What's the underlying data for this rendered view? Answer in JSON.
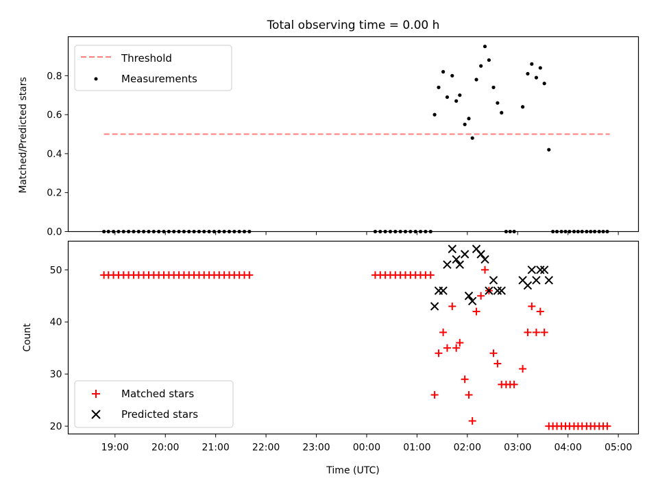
{
  "chart_data": [
    {
      "type": "scatter",
      "title": "Total observing time = 0.00 h",
      "ylabel": "Matched/Predicted stars",
      "ylim": [
        0,
        1.0
      ],
      "yticks": [
        "0.0",
        "0.2",
        "0.4",
        "0.6",
        "0.8"
      ],
      "legend": {
        "placement": "top-left",
        "threshold_label": "Threshold",
        "measurements_label": "Measurements"
      },
      "threshold": {
        "y": 0.5,
        "x_start": 18.78,
        "x_end": 28.83,
        "color": "#ff7f7f"
      },
      "series": [
        {
          "name": "Measurements",
          "color": "#000000",
          "x": [
            18.78,
            18.87,
            18.97,
            19.07,
            19.17,
            19.27,
            19.37,
            19.47,
            19.57,
            19.67,
            19.77,
            19.87,
            19.97,
            20.07,
            20.17,
            20.27,
            20.37,
            20.47,
            20.57,
            20.67,
            20.77,
            20.87,
            20.97,
            21.07,
            21.17,
            21.27,
            21.37,
            21.47,
            21.57,
            21.67,
            24.17,
            24.27,
            24.37,
            24.47,
            24.57,
            24.67,
            24.77,
            24.87,
            24.97,
            25.07,
            25.17,
            25.27,
            25.35,
            25.43,
            25.52,
            25.6,
            25.7,
            25.78,
            25.85,
            25.95,
            26.03,
            26.1,
            26.18,
            26.27,
            26.35,
            26.43,
            26.52,
            26.6,
            26.68,
            26.77,
            26.85,
            26.93,
            27.1,
            27.2,
            27.28,
            27.37,
            27.45,
            27.53,
            27.62,
            27.7,
            27.78,
            27.87,
            27.95,
            28.03,
            28.12,
            28.2,
            28.28,
            28.37,
            28.45,
            28.53,
            28.62,
            28.7,
            28.78
          ],
          "y": [
            0,
            0,
            0,
            0,
            0,
            0,
            0,
            0,
            0,
            0,
            0,
            0,
            0,
            0,
            0,
            0,
            0,
            0,
            0,
            0,
            0,
            0,
            0,
            0,
            0,
            0,
            0,
            0,
            0,
            0,
            0,
            0,
            0,
            0,
            0,
            0,
            0,
            0,
            0,
            0,
            0,
            0,
            0.6,
            0.74,
            0.82,
            0.69,
            0.8,
            0.67,
            0.7,
            0.55,
            0.58,
            0.48,
            0.78,
            0.85,
            0.95,
            0.88,
            0.74,
            0.66,
            0.61,
            0,
            0,
            0,
            0.64,
            0.81,
            0.86,
            0.79,
            0.84,
            0.76,
            0.42,
            0,
            0,
            0,
            0,
            0,
            0,
            0,
            0,
            0,
            0,
            0,
            0,
            0,
            0
          ]
        }
      ]
    },
    {
      "type": "scatter",
      "title": "",
      "xlabel": "Time (UTC)",
      "ylabel": "Count",
      "ylim": [
        18.5,
        55.5
      ],
      "xlim": [
        18.07,
        29.4
      ],
      "yticks": [
        "20",
        "30",
        "40",
        "50"
      ],
      "xticks": [
        {
          "v": 19,
          "label": "19:00"
        },
        {
          "v": 20,
          "label": "20:00"
        },
        {
          "v": 21,
          "label": "21:00"
        },
        {
          "v": 22,
          "label": "22:00"
        },
        {
          "v": 23,
          "label": "23:00"
        },
        {
          "v": 24,
          "label": "00:00"
        },
        {
          "v": 25,
          "label": "01:00"
        },
        {
          "v": 26,
          "label": "02:00"
        },
        {
          "v": 27,
          "label": "03:00"
        },
        {
          "v": 28,
          "label": "04:00"
        },
        {
          "v": 29,
          "label": "05:00"
        }
      ],
      "legend": {
        "placement": "bottom-left",
        "matched_label": "Matched stars",
        "predicted_label": "Predicted stars"
      },
      "series": [
        {
          "name": "Matched stars",
          "color": "#ff0000",
          "x": [
            18.78,
            18.87,
            18.97,
            19.07,
            19.17,
            19.27,
            19.37,
            19.47,
            19.57,
            19.67,
            19.77,
            19.87,
            19.97,
            20.07,
            20.17,
            20.27,
            20.37,
            20.47,
            20.57,
            20.67,
            20.77,
            20.87,
            20.97,
            21.07,
            21.17,
            21.27,
            21.37,
            21.47,
            21.57,
            21.67,
            24.17,
            24.27,
            24.37,
            24.47,
            24.57,
            24.67,
            24.77,
            24.87,
            24.97,
            25.07,
            25.17,
            25.27,
            25.35,
            25.43,
            25.52,
            25.6,
            25.7,
            25.78,
            25.85,
            25.95,
            26.03,
            26.1,
            26.18,
            26.27,
            26.35,
            26.43,
            26.52,
            26.6,
            26.68,
            26.77,
            26.85,
            26.93,
            27.1,
            27.2,
            27.28,
            27.37,
            27.45,
            27.53,
            27.62,
            27.7,
            27.78,
            27.87,
            27.95,
            28.03,
            28.12,
            28.2,
            28.28,
            28.37,
            28.45,
            28.53,
            28.62,
            28.7,
            28.78
          ],
          "y": [
            49,
            49,
            49,
            49,
            49,
            49,
            49,
            49,
            49,
            49,
            49,
            49,
            49,
            49,
            49,
            49,
            49,
            49,
            49,
            49,
            49,
            49,
            49,
            49,
            49,
            49,
            49,
            49,
            49,
            49,
            49,
            49,
            49,
            49,
            49,
            49,
            49,
            49,
            49,
            49,
            49,
            49,
            26,
            34,
            38,
            35,
            43,
            35,
            36,
            29,
            26,
            21,
            42,
            45,
            50,
            46,
            34,
            32,
            28,
            28,
            28,
            28,
            31,
            38,
            43,
            38,
            42,
            38,
            20,
            20,
            20,
            20,
            20,
            20,
            20,
            20,
            20,
            20,
            20,
            20,
            20,
            20,
            20
          ]
        },
        {
          "name": "Predicted stars",
          "color": "#000000",
          "x": [
            25.35,
            25.43,
            25.52,
            25.6,
            25.7,
            25.78,
            25.85,
            25.95,
            26.03,
            26.1,
            26.18,
            26.27,
            26.35,
            26.43,
            26.52,
            26.6,
            26.68,
            27.1,
            27.2,
            27.28,
            27.37,
            27.45,
            27.53,
            27.62
          ],
          "y": [
            43,
            46,
            46,
            51,
            54,
            52,
            51,
            53,
            45,
            44,
            54,
            53,
            52,
            46,
            48,
            46,
            46,
            48,
            47,
            50,
            48,
            50,
            50,
            48
          ]
        }
      ]
    }
  ]
}
